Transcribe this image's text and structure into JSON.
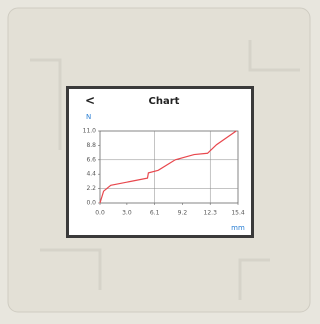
{
  "screen": {
    "back": "<"
  },
  "chart_data": {
    "type": "line",
    "title": "Chart",
    "y_label": "N",
    "x_label": "mm",
    "series": [
      {
        "name": null,
        "color": "#e8474d",
        "x": [
          0,
          0.4,
          1.2,
          3.8,
          5.3,
          5.4,
          6.5,
          8.4,
          10.5,
          12.0,
          13.0,
          15.2
        ],
        "values": [
          0,
          1.8,
          2.7,
          3.4,
          3.8,
          4.6,
          5.0,
          6.6,
          7.4,
          7.6,
          8.9,
          11.0
        ]
      }
    ],
    "xlim": [
      0,
      15.4
    ],
    "xticks": [
      {
        "value": 0,
        "label": "0.0"
      },
      {
        "value": 3.0,
        "label": "3.0"
      },
      6.1,
      9.2,
      12.3,
      15.4
    ],
    "ylim": [
      0,
      11
    ],
    "yticks": [
      {
        "value": 0,
        "label": "0.0"
      },
      2.2,
      4.4,
      6.6,
      8.8,
      {
        "value": 11,
        "label": "11.0"
      }
    ],
    "grid": true
  }
}
